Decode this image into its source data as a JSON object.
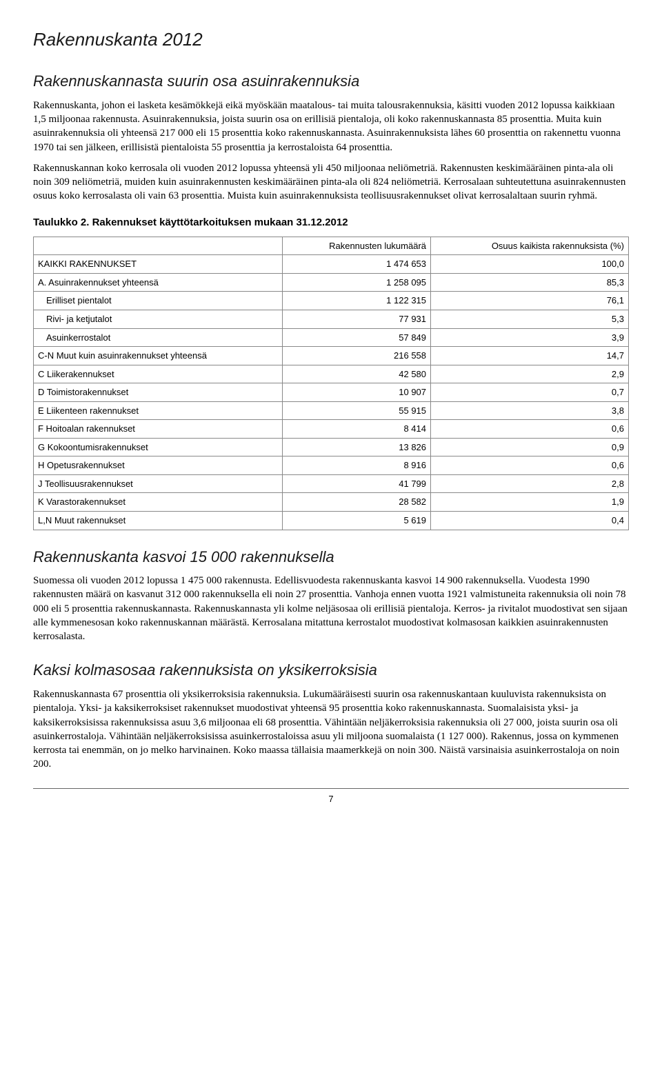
{
  "page": {
    "title": "Rakennuskanta 2012",
    "section1_heading": "Rakennuskannasta suurin osa asuinrakennuksia",
    "para1": "Rakennuskanta, johon ei lasketa kesämökkejä eikä myöskään maatalous- tai muita talousrakennuksia, käsitti vuoden 2012 lopussa kaikkiaan 1,5 miljoonaa rakennusta. Asuinrakennuksia, joista suurin osa on erillisiä pientaloja, oli koko rakennuskannasta 85 prosenttia. Muita kuin asuinrakennuksia oli yhteensä 217 000 eli 15 prosenttia koko rakennuskannasta. Asuinrakennuksista lähes 60 prosenttia on rakennettu vuonna 1970 tai sen jälkeen, erillisistä pientaloista 55 prosenttia ja kerrostaloista 64 prosenttia.",
    "para2": "Rakennuskannan koko kerrosala oli vuoden 2012 lopussa yhteensä yli 450 miljoonaa neliömetriä. Rakennusten keskimääräinen pinta-ala oli noin 309 neliömetriä, muiden kuin asuinrakennusten keskimääräinen pinta-ala oli 824 neliömetriä. Kerrosalaan suhteutettuna asuinrakennusten osuus koko kerrosalasta oli vain 63 prosenttia. Muista kuin asuinrakennuksista teollisuusrakennukset olivat kerrosalaltaan suurin ryhmä.",
    "table_title": "Taulukko 2. Rakennukset käyttötarkoituksen mukaan 31.12.2012",
    "table": {
      "col1": "Rakennusten lukumäärä",
      "col2": "Osuus kaikista rakennuksista (%)",
      "rows": [
        {
          "label": "KAIKKI RAKENNUKSET",
          "indent": 0,
          "v1": "1 474 653",
          "v2": "100,0"
        },
        {
          "label": "A. Asuinrakennukset yhteensä",
          "indent": 0,
          "v1": "1 258 095",
          "v2": "85,3"
        },
        {
          "label": "Erilliset pientalot",
          "indent": 1,
          "v1": "1 122 315",
          "v2": "76,1"
        },
        {
          "label": "Rivi- ja ketjutalot",
          "indent": 1,
          "v1": "77 931",
          "v2": "5,3"
        },
        {
          "label": "Asuinkerrostalot",
          "indent": 1,
          "v1": "57 849",
          "v2": "3,9"
        },
        {
          "label": "C-N Muut kuin asuinrakennukset yhteensä",
          "indent": 0,
          "v1": "216 558",
          "v2": "14,7"
        },
        {
          "label": "C Liikerakennukset",
          "indent": 0,
          "v1": "42 580",
          "v2": "2,9"
        },
        {
          "label": "D Toimistorakennukset",
          "indent": 0,
          "v1": "10 907",
          "v2": "0,7"
        },
        {
          "label": "E Liikenteen rakennukset",
          "indent": 0,
          "v1": "55 915",
          "v2": "3,8"
        },
        {
          "label": "F Hoitoalan rakennukset",
          "indent": 0,
          "v1": "8 414",
          "v2": "0,6"
        },
        {
          "label": "G Kokoontumisrakennukset",
          "indent": 0,
          "v1": "13 826",
          "v2": "0,9"
        },
        {
          "label": "H Opetusrakennukset",
          "indent": 0,
          "v1": "8 916",
          "v2": "0,6"
        },
        {
          "label": "J Teollisuusrakennukset",
          "indent": 0,
          "v1": "41 799",
          "v2": "2,8"
        },
        {
          "label": "K Varastorakennukset",
          "indent": 0,
          "v1": "28 582",
          "v2": "1,9"
        },
        {
          "label": "L,N Muut rakennukset",
          "indent": 0,
          "v1": "5 619",
          "v2": "0,4"
        }
      ]
    },
    "section2_heading": "Rakennuskanta kasvoi 15 000 rakennuksella",
    "para3": "Suomessa oli vuoden 2012 lopussa 1 475 000 rakennusta. Edellisvuodesta rakennuskanta kasvoi 14 900 rakennuksella. Vuodesta 1990 rakennusten määrä on kasvanut 312 000 rakennuksella eli noin 27 prosenttia. Vanhoja ennen vuotta 1921 valmistuneita rakennuksia oli noin 78 000 eli 5 prosenttia rakennuskannasta. Rakennuskannasta yli kolme neljäsosaa oli erillisiä pientaloja. Kerros- ja rivitalot muodostivat sen sijaan alle kymmenesosan koko rakennuskannan määrästä. Kerrosalana mitattuna kerrostalot muodostivat kolmasosan kaikkien asuinrakennusten kerrosalasta.",
    "section3_heading": "Kaksi kolmasosaa rakennuksista on yksikerroksisia",
    "para4": "Rakennuskannasta 67 prosenttia oli yksikerroksisia rakennuksia. Lukumääräisesti suurin osa rakennuskantaan kuuluvista rakennuksista on pientaloja. Yksi- ja kaksikerroksiset rakennukset muodostivat yhteensä 95 prosenttia koko rakennuskannasta. Suomalaisista yksi- ja kaksikerroksisissa rakennuksissa asuu 3,6 miljoonaa eli 68 prosenttia. Vähintään neljäkerroksisia rakennuksia oli 27 000, joista suurin osa oli asuinkerrostaloja. Vähintään neljäkerroksisissa asuinkerrostaloissa asuu yli miljoona suomalaista (1 127 000). Rakennus, jossa on kymmenen kerrosta tai enemmän, on jo melko harvinainen. Koko maassa tällaisia maamerkkejä on noin 300. Näistä varsinaisia asuinkerrostaloja on noin 200.",
    "page_number": "7"
  }
}
